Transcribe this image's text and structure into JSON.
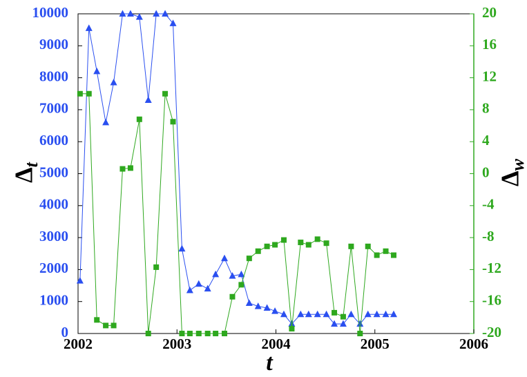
{
  "chart_data": {
    "type": "line",
    "xlabel": "t",
    "ylabel": {
      "text": "Δ",
      "sub": "t"
    },
    "y2label": {
      "text": "Δ",
      "sub": "w"
    },
    "x": [
      2002.02,
      2002.11,
      2002.19,
      2002.28,
      2002.36,
      2002.45,
      2002.53,
      2002.62,
      2002.71,
      2002.79,
      2002.88,
      2002.96,
      2003.05,
      2003.13,
      2003.22,
      2003.31,
      2003.39,
      2003.48,
      2003.56,
      2003.65,
      2003.73,
      2003.82,
      2003.91,
      2003.99,
      2004.08,
      2004.16,
      2004.25,
      2004.33,
      2004.42,
      2004.51,
      2004.59,
      2004.68,
      2004.76,
      2004.85,
      2004.93,
      2005.02,
      2005.11,
      2005.19
    ],
    "series": [
      {
        "color": "#2a4ff0",
        "marker": "triangle",
        "axis": "y",
        "values": [
          1650,
          9550,
          8200,
          6600,
          7850,
          10000,
          10000,
          9900,
          7300,
          10000,
          10000,
          9700,
          2650,
          1350,
          1550,
          1400,
          1850,
          2350,
          1800,
          1850,
          950,
          850,
          800,
          700,
          600,
          300,
          600,
          600,
          600,
          600,
          300,
          300,
          600,
          300,
          600,
          600,
          600,
          600
        ]
      },
      {
        "color": "#2ea81e",
        "marker": "square",
        "axis": "y2",
        "values": [
          10,
          10,
          -18.3,
          -19,
          -19,
          0.6,
          0.7,
          6.8,
          -20,
          -11.7,
          10,
          6.5,
          -20,
          -20,
          -20,
          -20,
          -20,
          -20,
          -15.4,
          -13.9,
          -10.6,
          -9.7,
          -9.1,
          -8.9,
          -8.3,
          -19.4,
          -8.6,
          -8.9,
          -8.2,
          -8.7,
          -17.4,
          -17.9,
          -9.1,
          -20,
          -9.1,
          -10.2,
          -9.7,
          -10.2
        ]
      }
    ],
    "xlim": [
      2002,
      2006
    ],
    "xticks": [
      2002,
      2003,
      2004,
      2005,
      2006
    ],
    "ylim": [
      0,
      10000
    ],
    "yticks": [
      0,
      1000,
      2000,
      3000,
      4000,
      5000,
      6000,
      7000,
      8000,
      9000,
      10000
    ],
    "y2lim": [
      -20,
      20
    ],
    "y2ticks": [
      -20,
      -16,
      -12,
      -8,
      -4,
      0,
      4,
      8,
      12,
      16,
      20
    ]
  }
}
